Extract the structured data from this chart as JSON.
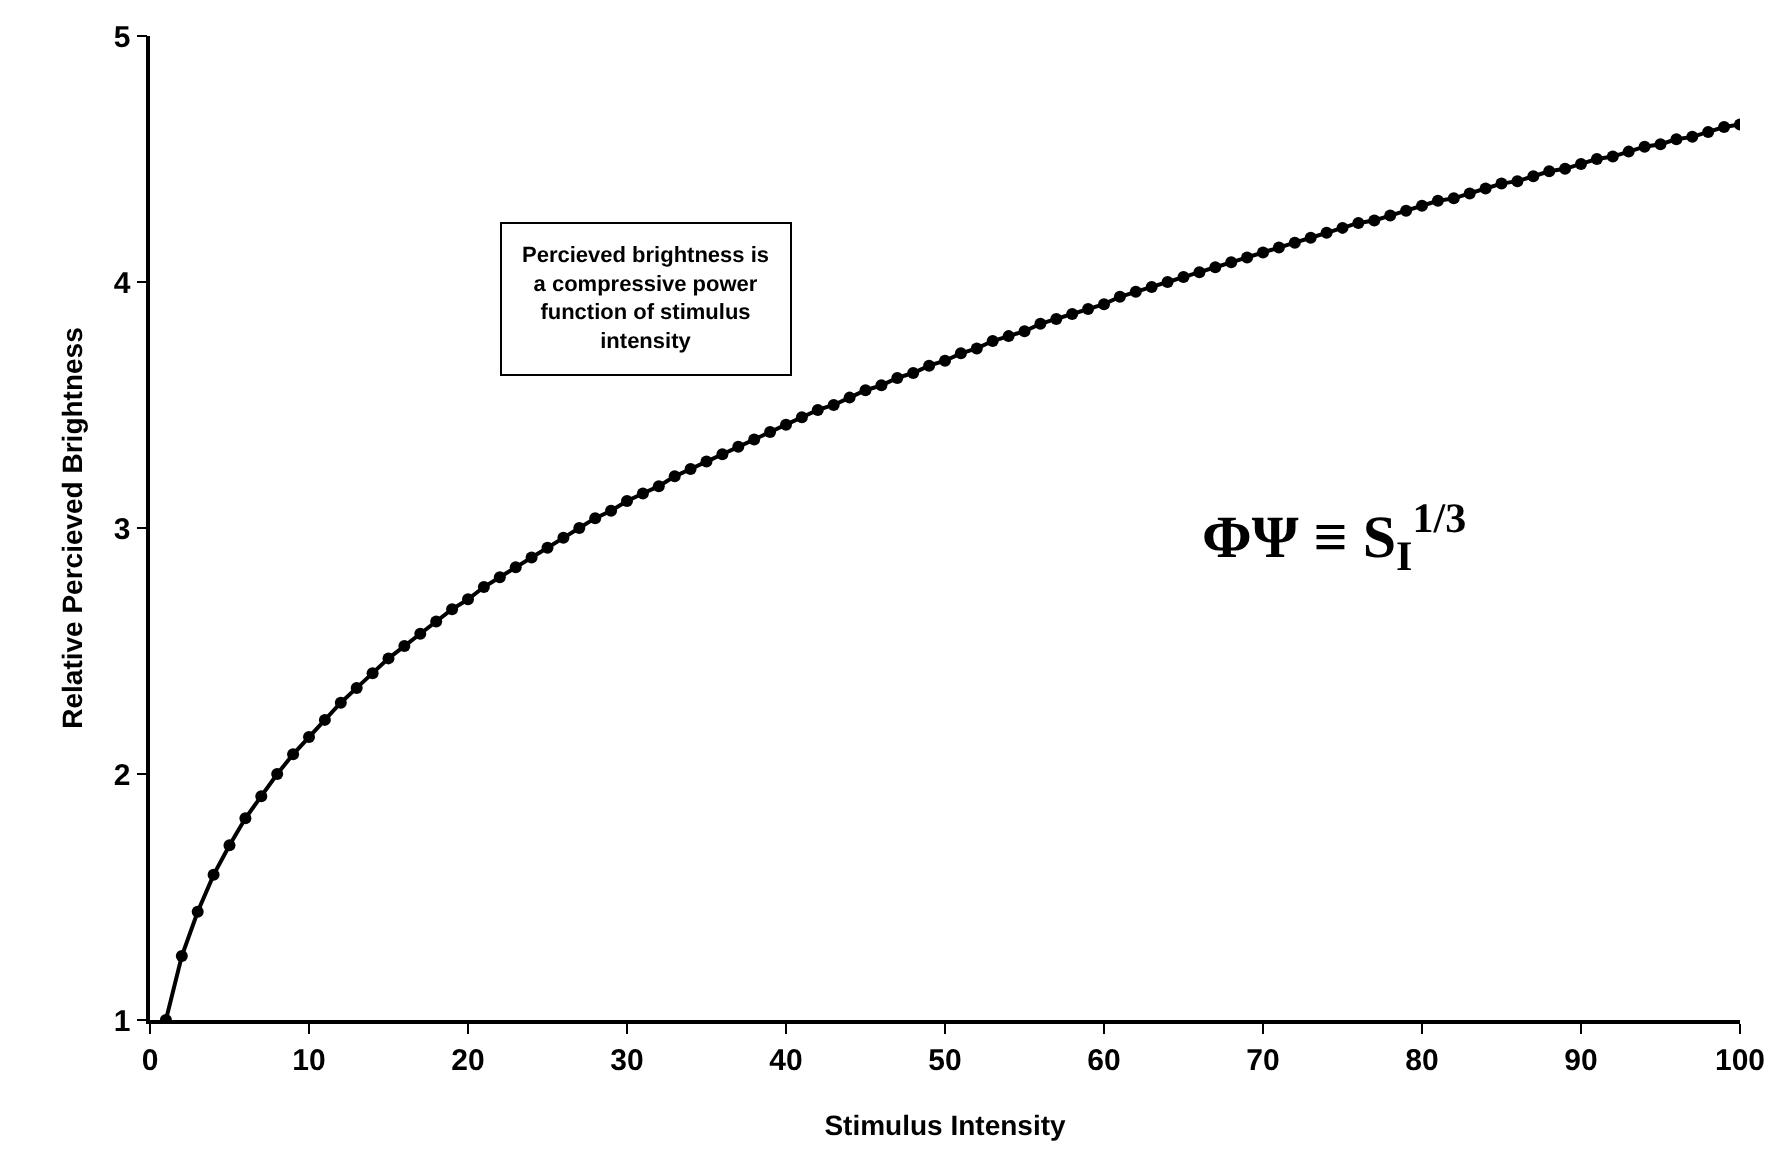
{
  "chart_data": {
    "type": "line",
    "xlabel": "Stimulus Intensity",
    "ylabel": "Relative Percieved Brightness",
    "annotations": [
      "Percieved brightness is a compressive power function of stimulus intensity",
      "ΦΨ ≡ S$_{I}$$^{1/3}$"
    ],
    "x": [
      1,
      2,
      3,
      4,
      5,
      6,
      7,
      8,
      9,
      10,
      11,
      12,
      13,
      14,
      15,
      16,
      17,
      18,
      19,
      20,
      21,
      22,
      23,
      24,
      25,
      26,
      27,
      28,
      29,
      30,
      31,
      32,
      33,
      34,
      35,
      36,
      37,
      38,
      39,
      40,
      41,
      42,
      43,
      44,
      45,
      46,
      47,
      48,
      49,
      50,
      51,
      52,
      53,
      54,
      55,
      56,
      57,
      58,
      59,
      60,
      61,
      62,
      63,
      64,
      65,
      66,
      67,
      68,
      69,
      70,
      71,
      72,
      73,
      74,
      75,
      76,
      77,
      78,
      79,
      80,
      81,
      82,
      83,
      84,
      85,
      86,
      87,
      88,
      89,
      90,
      91,
      92,
      93,
      94,
      95,
      96,
      97,
      98,
      99,
      100
    ],
    "series": [
      {
        "color": "#000000",
        "values": [
          1.0,
          1.26,
          1.44,
          1.59,
          1.71,
          1.82,
          1.91,
          2.0,
          2.08,
          2.15,
          2.22,
          2.29,
          2.35,
          2.41,
          2.47,
          2.52,
          2.57,
          2.62,
          2.67,
          2.71,
          2.76,
          2.8,
          2.84,
          2.88,
          2.92,
          2.96,
          3.0,
          3.04,
          3.07,
          3.11,
          3.14,
          3.17,
          3.21,
          3.24,
          3.27,
          3.3,
          3.33,
          3.36,
          3.39,
          3.42,
          3.45,
          3.48,
          3.5,
          3.53,
          3.56,
          3.58,
          3.61,
          3.63,
          3.66,
          3.68,
          3.71,
          3.73,
          3.76,
          3.78,
          3.8,
          3.83,
          3.85,
          3.87,
          3.89,
          3.91,
          3.94,
          3.96,
          3.98,
          4.0,
          4.02,
          4.04,
          4.06,
          4.08,
          4.1,
          4.12,
          4.14,
          4.16,
          4.18,
          4.2,
          4.22,
          4.24,
          4.25,
          4.27,
          4.29,
          4.31,
          4.33,
          4.34,
          4.36,
          4.38,
          4.4,
          4.41,
          4.43,
          4.45,
          4.46,
          4.48,
          4.5,
          4.51,
          4.53,
          4.55,
          4.56,
          4.58,
          4.59,
          4.61,
          4.63,
          4.64
        ]
      }
    ],
    "xlim": [
      0,
      100
    ],
    "xticks": [
      0,
      10,
      20,
      30,
      40,
      50,
      60,
      70,
      80,
      90,
      100
    ],
    "ylim": [
      1,
      5
    ],
    "yticks": [
      1,
      2,
      3,
      4,
      5
    ],
    "grid": false,
    "marker": "circle",
    "line_style": "solid"
  }
}
